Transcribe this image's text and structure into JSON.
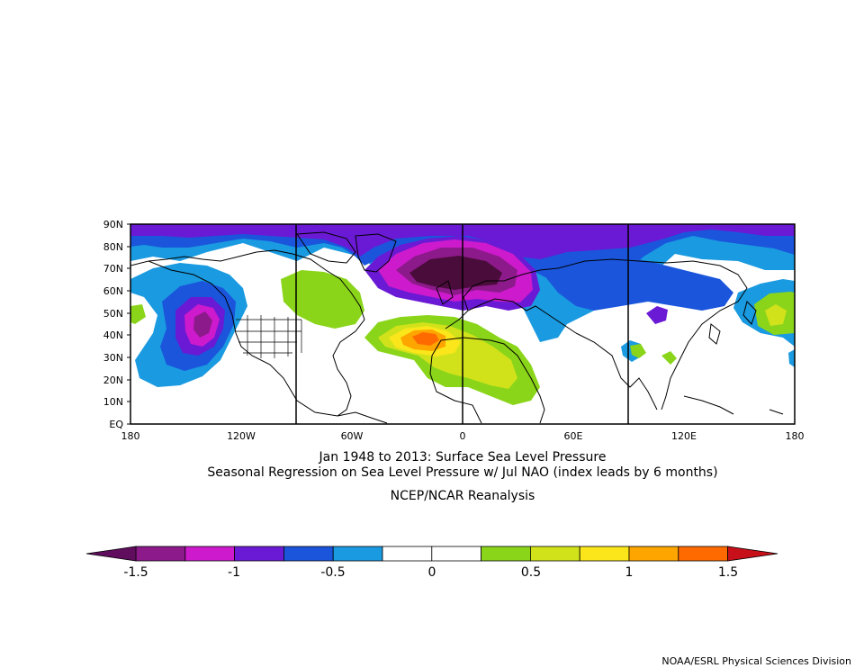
{
  "title_line1": "Jan 1948 to 2013: Surface Sea Level Pressure",
  "title_line2": "Seasonal Regression on Sea Level Pressure  w/ Jul NAO (index leads by 6 months)",
  "title_line3": "NCEP/NCAR Reanalysis",
  "credit": "NOAA/ESRL Physical Sciences Division",
  "map": {
    "lon_ticks": [
      "180",
      "120W",
      "60W",
      "0",
      "60E",
      "120E",
      "180"
    ],
    "lat_ticks": [
      "90N",
      "80N",
      "70N",
      "60N",
      "50N",
      "40N",
      "30N",
      "20N",
      "10N",
      "EQ"
    ],
    "vertical_grid_lons": [
      "90W",
      "0",
      "90E"
    ],
    "regions": [
      {
        "color": "#1a55dc",
        "lon": [
          180,
          -180
        ],
        "lat": [
          82,
          90
        ]
      },
      {
        "color": "#8a18a8",
        "note": "",
        "lon": [
          -30,
          40
        ],
        "lat": [
          60,
          83
        ]
      },
      {
        "color": "#ff9a00",
        "lon": [
          -28,
          -10
        ],
        "lat": [
          34,
          42
        ]
      }
    ]
  },
  "colorbar": {
    "colors": [
      "#8d1a8a",
      "#cc1acc",
      "#6a1ad4",
      "#1a55dc",
      "#1a9ae0",
      "#ffffff",
      "#ffffff",
      "#8ad51a",
      "#d2e21a",
      "#fae61a",
      "#ffa500",
      "#ff6a00"
    ],
    "left_arrow": "#600d5e",
    "right_arrow": "#c8101a",
    "labels": [
      "-1.5",
      "-1",
      "-0.5",
      "0",
      "0.5",
      "1",
      "1.5"
    ]
  }
}
